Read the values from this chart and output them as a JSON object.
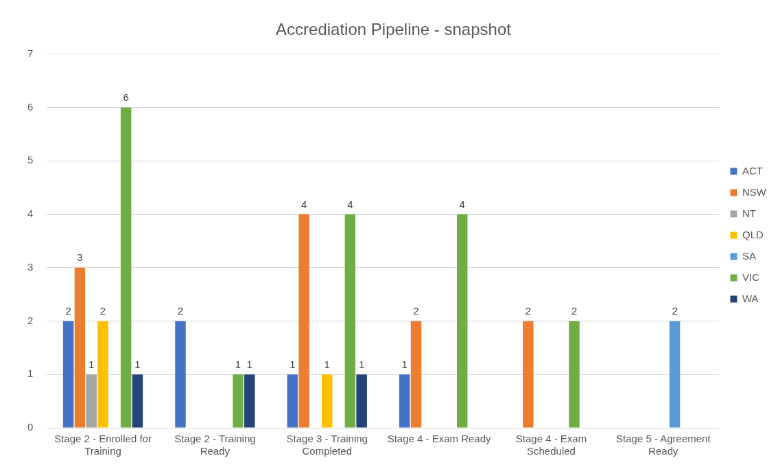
{
  "chart_data": {
    "type": "bar",
    "title": "Accrediation Pipeline - snapshot",
    "categories": [
      "Stage 2 - Enrolled for Training",
      "Stage 2 - Training Ready",
      "Stage 3 - Training Completed",
      "Stage 4 - Exam Ready",
      "Stage 4 - Exam Scheduled",
      "Stage 5 - Agreement Ready"
    ],
    "series": [
      {
        "name": "ACT",
        "color": "#4472c4",
        "values": [
          2,
          2,
          1,
          1,
          null,
          null
        ]
      },
      {
        "name": "NSW",
        "color": "#ed7d31",
        "values": [
          3,
          null,
          4,
          2,
          2,
          null
        ]
      },
      {
        "name": "NT",
        "color": "#a5a5a5",
        "values": [
          1,
          null,
          null,
          null,
          null,
          null
        ]
      },
      {
        "name": "QLD",
        "color": "#ffc000",
        "values": [
          2,
          null,
          1,
          null,
          null,
          null
        ]
      },
      {
        "name": "SA",
        "color": "#5b9bd5",
        "values": [
          null,
          null,
          null,
          null,
          null,
          2
        ]
      },
      {
        "name": "VIC",
        "color": "#70ad47",
        "values": [
          6,
          1,
          4,
          4,
          2,
          null
        ]
      },
      {
        "name": "WA",
        "color": "#264478",
        "values": [
          1,
          1,
          1,
          null,
          null,
          null
        ]
      }
    ],
    "ylim": [
      0,
      7
    ],
    "yticks": [
      0,
      1,
      2,
      3,
      4,
      5,
      6,
      7
    ],
    "grid": "y",
    "legend": "right",
    "data_labels": true
  }
}
